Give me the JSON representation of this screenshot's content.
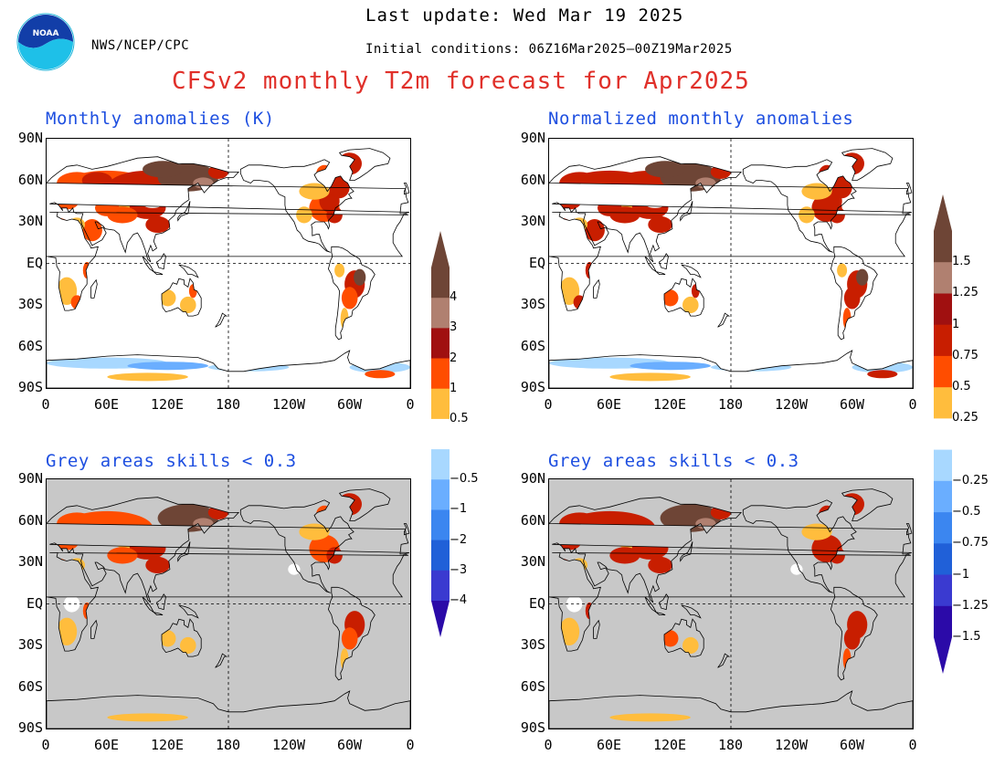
{
  "header": {
    "last_update": "Last update: Wed Mar 19 2025",
    "agency": "NWS/NCEP/CPC",
    "initial_conditions": "Initial conditions: 06Z16Mar2025–00Z19Mar2025",
    "title": "CFSv2 monthly T2m forecast for Apr2025",
    "logo_text": "NOAA"
  },
  "colors": {
    "title_red": "#e0302a",
    "panel_title_blue": "#1e4fe0",
    "land_white": "#ffffff",
    "ocean_white": "#ffffff",
    "grey_mask": "#c8c8c8",
    "warm_0": "#ffbd3d",
    "warm_1": "#ff4d00",
    "warm_2": "#c81e00",
    "warm_3": "#a01010",
    "warm_4": "#b08070",
    "warm_5": "#6e4536",
    "cold_0": "#a8d8ff",
    "cold_1": "#6aaeff",
    "cold_2": "#3b86f0",
    "cold_3": "#2060d8",
    "cold_4": "#3a3ad0",
    "cold_5": "#2b0aa8"
  },
  "panels": [
    {
      "title": "Monthly anomalies (K)",
      "masked": false,
      "normalized": false
    },
    {
      "title": "Normalized monthly anomalies",
      "masked": false,
      "normalized": true
    },
    {
      "title": "Grey areas skills < 0.3",
      "masked": true,
      "normalized": false
    },
    {
      "title": "Grey areas skills < 0.3",
      "masked": true,
      "normalized": true
    }
  ],
  "axes": {
    "y_labels": [
      "90N",
      "60N",
      "30N",
      "EQ",
      "30S",
      "60S",
      "90S"
    ],
    "x_labels": [
      "0",
      "60E",
      "120E",
      "180",
      "120W",
      "60W",
      "0"
    ]
  },
  "colorbars": [
    {
      "units": "K",
      "labels": [
        "4",
        "3",
        "2",
        "1",
        "0.5",
        "−0.5",
        "−1",
        "−2",
        "−3",
        "−4"
      ]
    },
    {
      "units": "standardized",
      "labels": [
        "1.5",
        "1.25",
        "1",
        "0.75",
        "0.5",
        "0.25",
        "−0.25",
        "−0.5",
        "−0.75",
        "−1",
        "−1.25",
        "−1.5"
      ]
    }
  ],
  "map_content": {
    "projection": "cylindrical equidistant, 0-360 longitude",
    "warm_regions": [
      "Eurasia",
      "North America east",
      "Africa",
      "South America",
      "Australia"
    ],
    "cold_regions": [
      "Antarctica"
    ]
  }
}
